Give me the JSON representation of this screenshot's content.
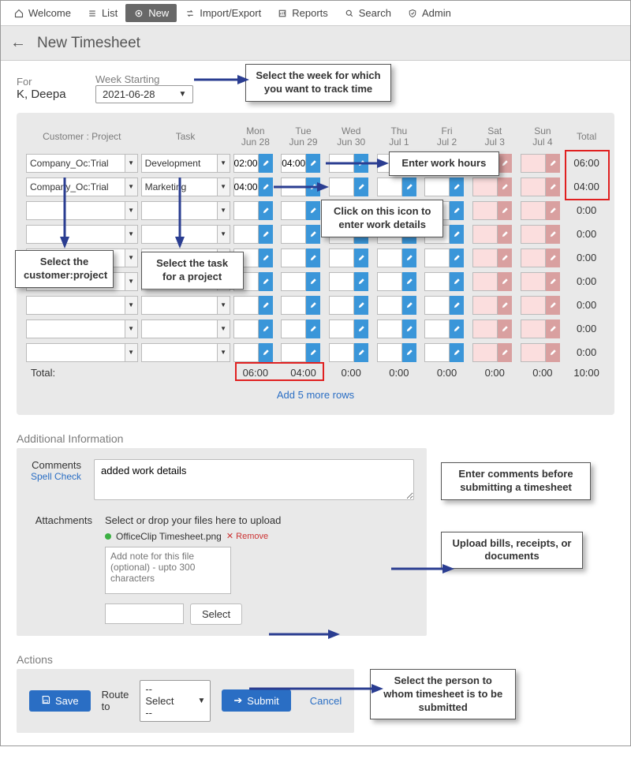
{
  "topnav": {
    "items": [
      {
        "icon": "home",
        "label": "Welcome"
      },
      {
        "icon": "list",
        "label": "List"
      },
      {
        "icon": "target",
        "label": "New",
        "active": true
      },
      {
        "icon": "swap",
        "label": "Import/Export"
      },
      {
        "icon": "report",
        "label": "Reports"
      },
      {
        "icon": "search",
        "label": "Search"
      },
      {
        "icon": "shield",
        "label": "Admin"
      }
    ]
  },
  "header": {
    "title": "New Timesheet"
  },
  "for": {
    "label": "For",
    "value": "K, Deepa"
  },
  "week": {
    "label": "Week Starting",
    "value": "2021-06-28"
  },
  "columns": {
    "customer": "Customer : Project",
    "task": "Task",
    "days": [
      {
        "d1": "Mon",
        "d2": "Jun 28"
      },
      {
        "d1": "Tue",
        "d2": "Jun 29"
      },
      {
        "d1": "Wed",
        "d2": "Jun 30"
      },
      {
        "d1": "Thu",
        "d2": "Jul 1"
      },
      {
        "d1": "Fri",
        "d2": "Jul 2"
      },
      {
        "d1": "Sat",
        "d2": "Jul 3"
      },
      {
        "d1": "Sun",
        "d2": "Jul 4"
      }
    ],
    "total": "Total"
  },
  "rows": [
    {
      "cp": "Company_Oc:Trial",
      "task": "Development",
      "times": [
        "02:00",
        "04:00",
        "",
        "",
        "",
        "",
        ""
      ],
      "total": "06:00"
    },
    {
      "cp": "Company_Oc:Trial",
      "task": "Marketing",
      "times": [
        "04:00",
        "",
        "",
        "",
        "",
        "",
        ""
      ],
      "total": "04:00"
    },
    {
      "cp": "",
      "task": "",
      "times": [
        "",
        "",
        "",
        "",
        "",
        "",
        ""
      ],
      "total": "0:00"
    },
    {
      "cp": "",
      "task": "",
      "times": [
        "",
        "",
        "",
        "",
        "",
        "",
        ""
      ],
      "total": "0:00"
    },
    {
      "cp": "",
      "task": "",
      "times": [
        "",
        "",
        "",
        "",
        "",
        "",
        ""
      ],
      "total": "0:00"
    },
    {
      "cp": "",
      "task": "",
      "times": [
        "",
        "",
        "",
        "",
        "",
        "",
        ""
      ],
      "total": "0:00"
    },
    {
      "cp": "",
      "task": "",
      "times": [
        "",
        "",
        "",
        "",
        "",
        "",
        ""
      ],
      "total": "0:00"
    },
    {
      "cp": "",
      "task": "",
      "times": [
        "",
        "",
        "",
        "",
        "",
        "",
        ""
      ],
      "total": "0:00"
    },
    {
      "cp": "",
      "task": "",
      "times": [
        "",
        "",
        "",
        "",
        "",
        "",
        ""
      ],
      "total": "0:00"
    }
  ],
  "totals": {
    "label": "Total:",
    "days": [
      "06:00",
      "04:00",
      "0:00",
      "0:00",
      "0:00",
      "0:00",
      "0:00"
    ],
    "grand": "10:00"
  },
  "addrows": "Add 5 more rows",
  "additional": {
    "heading": "Additional Information",
    "comments_label": "Comments",
    "spellcheck": "Spell Check",
    "comments_value": "added work details",
    "attachments_label": "Attachments",
    "upload_hint": "Select or drop your files here to upload",
    "file_name": "OfficeClip Timesheet.png",
    "remove": "Remove",
    "note_placeholder": "Add note for this file (optional) - upto 300 characters",
    "select_btn": "Select"
  },
  "actions": {
    "heading": "Actions",
    "save": "Save",
    "route_label": "Route to",
    "route_value": "-- Select --",
    "submit": "Submit",
    "cancel": "Cancel"
  },
  "callouts": {
    "week": "Select the week for which you want to track time",
    "hours": "Enter work hours",
    "details": "Click on this icon to enter work details",
    "cp": "Select the customer:project",
    "task": "Select the task for a project",
    "comments": "Enter comments before submitting a timesheet",
    "upload": "Upload bills, receipts, or documents",
    "route": "Select the person to whom timesheet is to be submitted"
  }
}
